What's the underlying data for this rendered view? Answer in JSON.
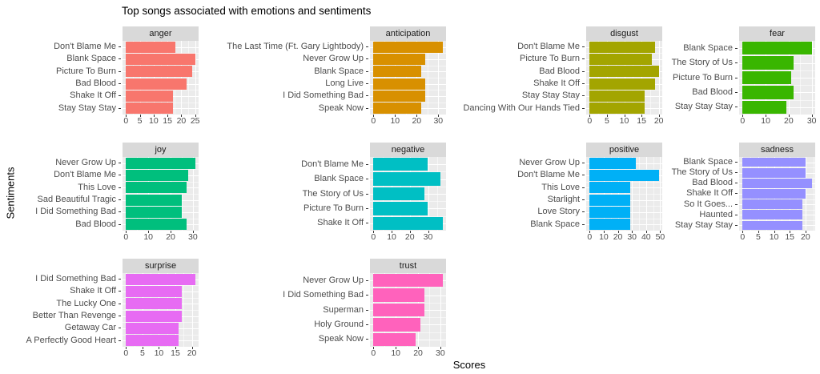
{
  "title": "Top songs associated with emotions and sentiments",
  "axis": {
    "x_label": "Scores",
    "y_label": "Sentiments"
  },
  "theme": {
    "panel_bg": "#EBEBEB",
    "strip_bg": "#D9D9D9",
    "grid_color": "#FFFFFF",
    "axis_text_color": "#4D4D4D",
    "strip_text_color": "#1A1A1A",
    "title_color": "#000000"
  },
  "chart_data": {
    "type": "bar",
    "orientation": "horizontal",
    "title": "Top songs associated with emotions and sentiments",
    "xlabel": "Scores",
    "ylabel": "Sentiments",
    "grid": "on",
    "legend": "none",
    "x_expand_mult": 0.05,
    "facets": [
      {
        "name": "anger",
        "color": "#F8766D",
        "ticks": [
          0,
          5,
          10,
          15,
          20,
          25
        ],
        "xlim": [
          0,
          26.3
        ],
        "songs": [
          "Don't Blame Me",
          "Blank Space",
          "Picture To Burn",
          "Bad Blood",
          "Shake It Off",
          "Stay Stay Stay"
        ],
        "values": [
          18,
          25,
          24,
          22,
          17,
          17
        ]
      },
      {
        "name": "anticipation",
        "color": "#D89000",
        "ticks": [
          0,
          10,
          20,
          30
        ],
        "xlim": [
          0,
          33.6
        ],
        "songs": [
          "The Last Time (Ft. Gary Lightbody)",
          "Never Grow Up",
          "Blank Space",
          "Long Live",
          "I Did Something Bad",
          "Speak Now"
        ],
        "values": [
          32,
          24,
          22,
          24,
          24,
          22
        ]
      },
      {
        "name": "disgust",
        "color": "#A3A500",
        "ticks": [
          0,
          5,
          10,
          15,
          20
        ],
        "xlim": [
          0,
          21
        ],
        "songs": [
          "Don't Blame Me",
          "Picture To Burn",
          "Bad Blood",
          "Shake It Off",
          "Stay Stay Stay",
          "Dancing With Our Hands Tied"
        ],
        "values": [
          19,
          18,
          20,
          19,
          16,
          16
        ]
      },
      {
        "name": "fear",
        "color": "#39B600",
        "ticks": [
          0,
          10,
          20,
          30
        ],
        "xlim": [
          0,
          31.5
        ],
        "songs": [
          "Blank Space",
          "The Story of Us",
          "Picture To Burn",
          "Bad Blood",
          "Stay Stay Stay"
        ],
        "values": [
          30,
          22,
          21,
          22,
          19
        ]
      },
      {
        "name": "joy",
        "color": "#00BF7D",
        "ticks": [
          0,
          10,
          20,
          30
        ],
        "xlim": [
          0,
          32.6
        ],
        "songs": [
          "Never Grow Up",
          "Don't Blame Me",
          "This Love",
          "Sad Beautiful Tragic",
          "I Did Something Bad",
          "Bad Blood"
        ],
        "values": [
          31,
          28,
          27,
          25,
          25,
          27
        ]
      },
      {
        "name": "negative",
        "color": "#00BFC4",
        "ticks": [
          0,
          10,
          20,
          30
        ],
        "xlim": [
          0,
          39.9
        ],
        "songs": [
          "Don't Blame Me",
          "Blank Space",
          "The Story of Us",
          "Picture To Burn",
          "Shake It Off"
        ],
        "values": [
          30,
          37,
          28,
          30,
          38
        ]
      },
      {
        "name": "positive",
        "color": "#00B0F6",
        "ticks": [
          0,
          10,
          20,
          30,
          40,
          50
        ],
        "xlim": [
          0,
          51.5
        ],
        "songs": [
          "Never Grow Up",
          "Don't Blame Me",
          "This Love",
          "Starlight",
          "Love Story",
          "Blank Space"
        ],
        "values": [
          33,
          49,
          29,
          29,
          29,
          29
        ]
      },
      {
        "name": "sadness",
        "color": "#9590FF",
        "ticks": [
          0,
          5,
          10,
          15,
          20
        ],
        "xlim": [
          0,
          23.1
        ],
        "songs": [
          "Blank Space",
          "The Story of Us",
          "Bad Blood",
          "Shake It Off",
          "So It Goes...",
          "Haunted",
          "Stay Stay Stay"
        ],
        "values": [
          20,
          20,
          22,
          20,
          19,
          19,
          19
        ]
      },
      {
        "name": "surprise",
        "color": "#E76BF3",
        "ticks": [
          0,
          5,
          10,
          15,
          20
        ],
        "xlim": [
          0,
          22.1
        ],
        "songs": [
          "I Did Something Bad",
          "Shake It Off",
          "The Lucky One",
          "Better Than Revenge",
          "Getaway Car",
          "A Perfectly Good Heart"
        ],
        "values": [
          21,
          17,
          17,
          17,
          16,
          16
        ]
      },
      {
        "name": "trust",
        "color": "#FF62BC",
        "ticks": [
          0,
          10,
          20,
          30
        ],
        "xlim": [
          0,
          32.6
        ],
        "songs": [
          "Never Grow Up",
          "I Did Something Bad",
          "Superman",
          "Holy Ground",
          "Speak Now"
        ],
        "values": [
          31,
          23,
          23,
          21,
          19
        ]
      }
    ]
  }
}
